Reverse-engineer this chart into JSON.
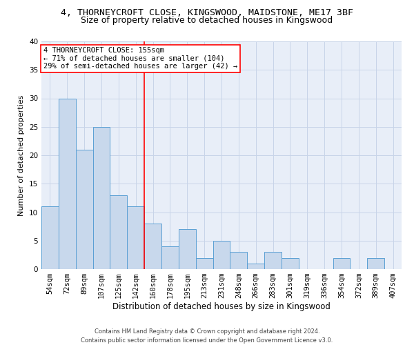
{
  "title1": "4, THORNEYCROFT CLOSE, KINGSWOOD, MAIDSTONE, ME17 3BF",
  "title2": "Size of property relative to detached houses in Kingswood",
  "xlabel": "Distribution of detached houses by size in Kingswood",
  "ylabel": "Number of detached properties",
  "categories": [
    "54sqm",
    "72sqm",
    "89sqm",
    "107sqm",
    "125sqm",
    "142sqm",
    "160sqm",
    "178sqm",
    "195sqm",
    "213sqm",
    "231sqm",
    "248sqm",
    "266sqm",
    "283sqm",
    "301sqm",
    "319sqm",
    "336sqm",
    "354sqm",
    "372sqm",
    "389sqm",
    "407sqm"
  ],
  "values": [
    11,
    30,
    21,
    25,
    13,
    11,
    8,
    4,
    7,
    2,
    5,
    3,
    1,
    3,
    2,
    0,
    0,
    2,
    0,
    2,
    0
  ],
  "bar_color": "#c8d8ec",
  "bar_edge_color": "#5a9fd4",
  "annotation_text": "4 THORNEYCROFT CLOSE: 155sqm\n← 71% of detached houses are smaller (104)\n29% of semi-detached houses are larger (42) →",
  "annotation_box_color": "white",
  "annotation_box_edge_color": "red",
  "vline_x_index": 5.5,
  "vline_color": "red",
  "ylim": [
    0,
    40
  ],
  "yticks": [
    0,
    5,
    10,
    15,
    20,
    25,
    30,
    35,
    40
  ],
  "grid_color": "#c8d4e8",
  "bg_color": "#e8eef8",
  "footer1": "Contains HM Land Registry data © Crown copyright and database right 2024.",
  "footer2": "Contains public sector information licensed under the Open Government Licence v3.0.",
  "title1_fontsize": 9.5,
  "title2_fontsize": 9,
  "xlabel_fontsize": 8.5,
  "ylabel_fontsize": 8,
  "tick_fontsize": 7.5,
  "annotation_fontsize": 7.5,
  "footer_fontsize": 6
}
